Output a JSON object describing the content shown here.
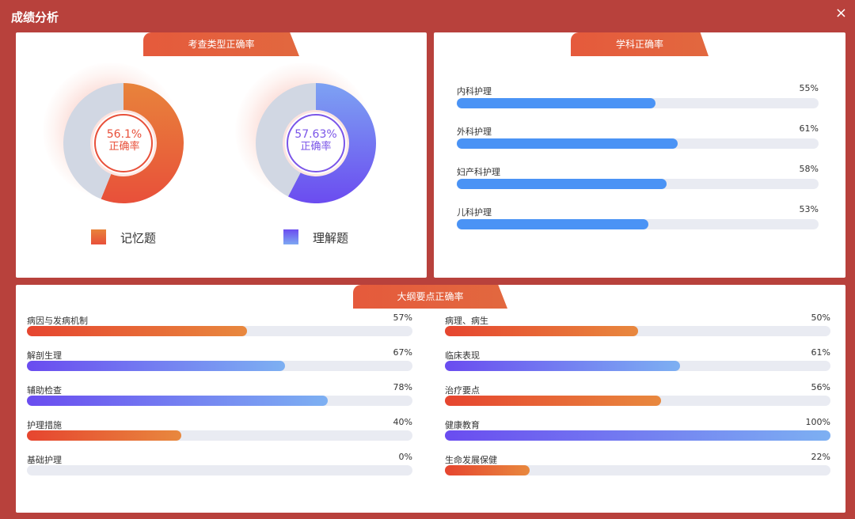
{
  "window": {
    "title": "成绩分析",
    "close_icon": "×"
  },
  "exam_type": {
    "tab_label": "考查类型正确率",
    "donuts": [
      {
        "pct_text": "56.1%",
        "sub_text": "正确率",
        "legend": "记忆题",
        "value": 56.1,
        "colors": [
          "#e8503a",
          "#e8833b"
        ],
        "text_color": "#e8503a"
      },
      {
        "pct_text": "57.63%",
        "sub_text": "正确率",
        "legend": "理解题",
        "value": 57.63,
        "colors": [
          "#6b4cf0",
          "#7da2f3"
        ],
        "text_color": "#7b56e8"
      }
    ]
  },
  "subject": {
    "tab_label": "学科正确率",
    "rows": [
      {
        "label": "内科护理",
        "pct_text": "55%",
        "value": 55
      },
      {
        "label": "外科护理",
        "pct_text": "61%",
        "value": 61
      },
      {
        "label": "妇产科护理",
        "pct_text": "58%",
        "value": 58
      },
      {
        "label": "儿科护理",
        "pct_text": "53%",
        "value": 53
      }
    ]
  },
  "outline": {
    "tab_label": "大纲要点正确率",
    "left": [
      {
        "label": "病因与发病机制",
        "pct_text": "57%",
        "value": 57,
        "style": "orange"
      },
      {
        "label": "解剖生理",
        "pct_text": "67%",
        "value": 67,
        "style": "purple"
      },
      {
        "label": "辅助检查",
        "pct_text": "78%",
        "value": 78,
        "style": "purple"
      },
      {
        "label": "护理措施",
        "pct_text": "40%",
        "value": 40,
        "style": "orange"
      },
      {
        "label": "基础护理",
        "pct_text": "0%",
        "value": 0,
        "style": "orange"
      }
    ],
    "right": [
      {
        "label": "病理、病生",
        "pct_text": "50%",
        "value": 50,
        "style": "orange"
      },
      {
        "label": "临床表现",
        "pct_text": "61%",
        "value": 61,
        "style": "purple"
      },
      {
        "label": "治疗要点",
        "pct_text": "56%",
        "value": 56,
        "style": "orange"
      },
      {
        "label": "健康教育",
        "pct_text": "100%",
        "value": 100,
        "style": "purple"
      },
      {
        "label": "生命发展保健",
        "pct_text": "22%",
        "value": 22,
        "style": "orange"
      }
    ]
  },
  "colors": {
    "background": "#b8413c",
    "subject_bar": "#4a93f5",
    "track": "#e9ebf2",
    "orange_gradient": [
      "#e6452f",
      "#e8883e"
    ],
    "purple_gradient": [
      "#6a4cf0",
      "#7db0f2"
    ]
  }
}
